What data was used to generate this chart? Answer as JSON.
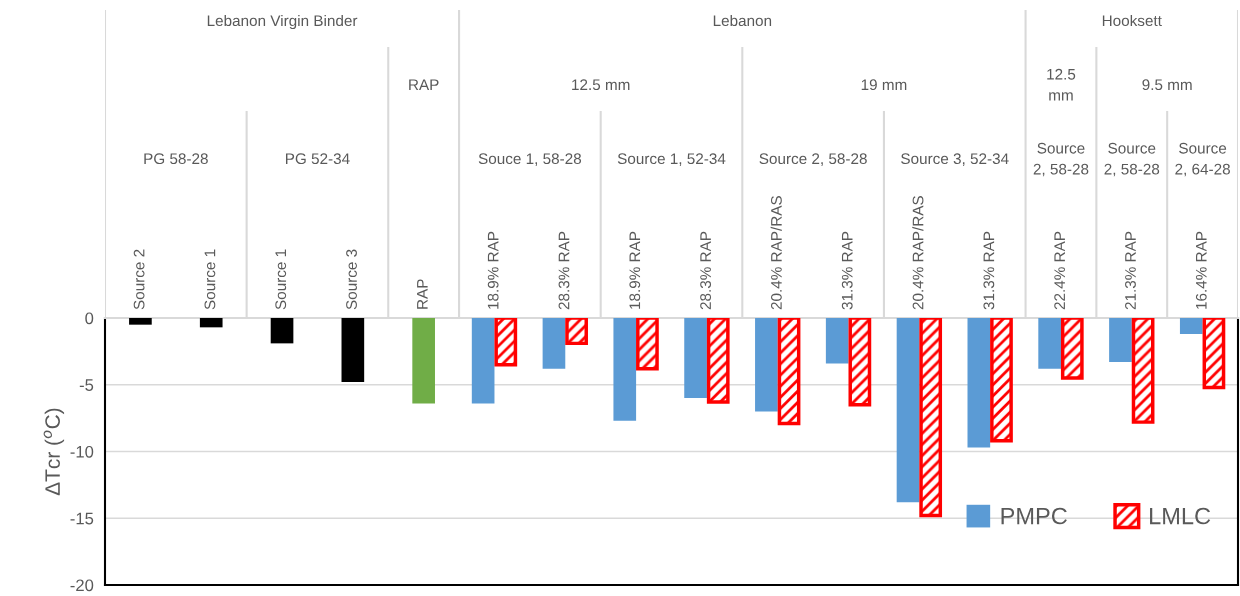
{
  "chart_data": {
    "type": "bar",
    "categories": [
      "Source 2",
      "Source 1",
      "Source 1",
      "Source 3",
      "RAP",
      "18.9% RAP",
      "28.3% RAP",
      "18.9% RAP",
      "28.3% RAP",
      "20.4% RAP/RAS",
      "31.3% RAP",
      "20.4% RAP/RAS",
      "31.3% RAP",
      "22.4% RAP",
      "21.3% RAP",
      "16.4% RAP"
    ],
    "series": [
      {
        "colors": [
          "#000000",
          "#000000",
          "#000000",
          "#000000",
          "#70ad47",
          null,
          null,
          null,
          null,
          null,
          null,
          null,
          null,
          null,
          null,
          null
        ],
        "values": [
          -0.5,
          -0.7,
          -1.9,
          -4.8,
          -6.4,
          null,
          null,
          null,
          null,
          null,
          null,
          null,
          null,
          null,
          null,
          null
        ]
      },
      {
        "name": "PMPC",
        "color": "#5b9bd5",
        "values": [
          null,
          null,
          null,
          null,
          null,
          -6.4,
          -3.8,
          -7.7,
          -6.0,
          -7.0,
          -3.4,
          -13.8,
          -9.7,
          -3.8,
          -3.3,
          -1.2
        ]
      },
      {
        "name": "LMLC",
        "color": "#ff0000",
        "values": [
          null,
          null,
          null,
          null,
          null,
          -3.5,
          -1.9,
          -3.8,
          -6.3,
          -7.9,
          -6.5,
          -14.8,
          -9.2,
          -4.5,
          -7.8,
          -5.2
        ]
      }
    ],
    "ylabel": "ΔTcr ($^{o}$C)",
    "ylim": [
      -20,
      0
    ],
    "yticks": [
      -20,
      -15,
      -10,
      -5,
      0
    ],
    "grid": "y",
    "legend": "bottom right",
    "annotations": [
      "Lebanon Virgin Binder",
      "Lebanon",
      "Hooksett",
      "RAP",
      "12.5 mm",
      "19 mm",
      "12.5\nmm",
      "9.5 mm",
      "PG 58-28",
      "PG 52-34",
      "Souce 1, 58-28",
      "Source 1, 52-34",
      "Source 2, 58-28",
      "Source 3, 52-34",
      "Source\n2, 58-28",
      "Source\n2, 58-28",
      "Source\n2, 64-28"
    ]
  }
}
